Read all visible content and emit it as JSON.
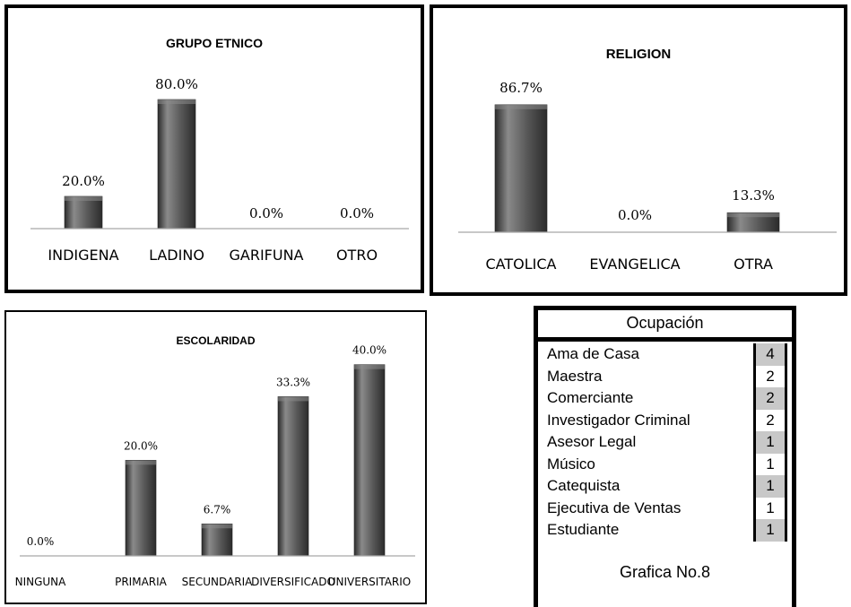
{
  "charts": [
    {
      "type": "bar",
      "title": "GRUPO ETNICO",
      "categories": [
        "INDIGENA",
        "LADINO",
        "GARIFUNA",
        "OTRO"
      ],
      "values": [
        20.0,
        80.0,
        0.0,
        0.0
      ],
      "labels": [
        "20.0%",
        "80.0%",
        "0.0%",
        "0.0%"
      ],
      "ylim": [
        0,
        100
      ]
    },
    {
      "type": "bar",
      "title": "RELIGION",
      "categories": [
        "CATOLICA",
        "EVANGELICA",
        "OTRA"
      ],
      "values": [
        86.7,
        0.0,
        13.3
      ],
      "labels": [
        "86.7%",
        "0.0%",
        "13.3%"
      ],
      "ylim": [
        0,
        100
      ]
    },
    {
      "type": "bar",
      "title": "ESCOLARIDAD",
      "categories": [
        "NINGUNA",
        "PRIMARIA",
        "SECUNDARIA",
        "DIVERSIFICADO",
        "UNIVERSITARIO"
      ],
      "values": [
        0.0,
        20.0,
        6.7,
        33.3,
        40.0
      ],
      "labels": [
        "0.0%",
        "20.0%",
        "6.7%",
        "33.3%",
        "40.0%"
      ],
      "ylim": [
        0,
        45
      ]
    }
  ],
  "chart_data": [
    {
      "type": "bar",
      "title": "GRUPO ETNICO",
      "categories": [
        "INDIGENA",
        "LADINO",
        "GARIFUNA",
        "OTRO"
      ],
      "values": [
        20.0,
        80.0,
        0.0,
        0.0
      ]
    },
    {
      "type": "bar",
      "title": "RELIGION",
      "categories": [
        "CATOLICA",
        "EVANGELICA",
        "OTRA"
      ],
      "values": [
        86.7,
        0.0,
        13.3
      ]
    },
    {
      "type": "bar",
      "title": "ESCOLARIDAD",
      "categories": [
        "NINGUNA",
        "PRIMARIA",
        "SECUNDARIA",
        "DIVERSIFICADO",
        "UNIVERSITARIO"
      ],
      "values": [
        0.0,
        20.0,
        6.7,
        33.3,
        40.0
      ]
    },
    {
      "type": "table",
      "title": "Ocupación",
      "rows": [
        {
          "label": "Ama de Casa",
          "value": 4
        },
        {
          "label": "Maestra",
          "value": 2
        },
        {
          "label": "Comerciante",
          "value": 2
        },
        {
          "label": "Investigador Criminal",
          "value": 2
        },
        {
          "label": "Asesor Legal",
          "value": 1
        },
        {
          "label": "Músico",
          "value": 1
        },
        {
          "label": "Catequista",
          "value": 1
        },
        {
          "label": "Ejecutiva de Ventas",
          "value": 1
        },
        {
          "label": "Estudiante",
          "value": 1
        }
      ],
      "caption": "Grafica No.8"
    }
  ],
  "table": {
    "title": "Ocupación",
    "rows": [
      {
        "label": "Ama de Casa",
        "value": "4"
      },
      {
        "label": "Maestra",
        "value": "2"
      },
      {
        "label": "Comerciante",
        "value": "2"
      },
      {
        "label": "Investigador Criminal",
        "value": "2"
      },
      {
        "label": "Asesor Legal",
        "value": "1"
      },
      {
        "label": "Músico",
        "value": "1"
      },
      {
        "label": "Catequista",
        "value": "1"
      },
      {
        "label": "Ejecutiva de Ventas",
        "value": "1"
      },
      {
        "label": "Estudiante",
        "value": "1"
      }
    ],
    "caption": "Grafica No.8"
  },
  "colors": {
    "bar": "#5a5a5a",
    "bar_dark": "#2b2b2b",
    "bar_light": "#8a8a8a",
    "axis": "#a6a6a6",
    "cell_shaded": "#c8c8c8"
  }
}
